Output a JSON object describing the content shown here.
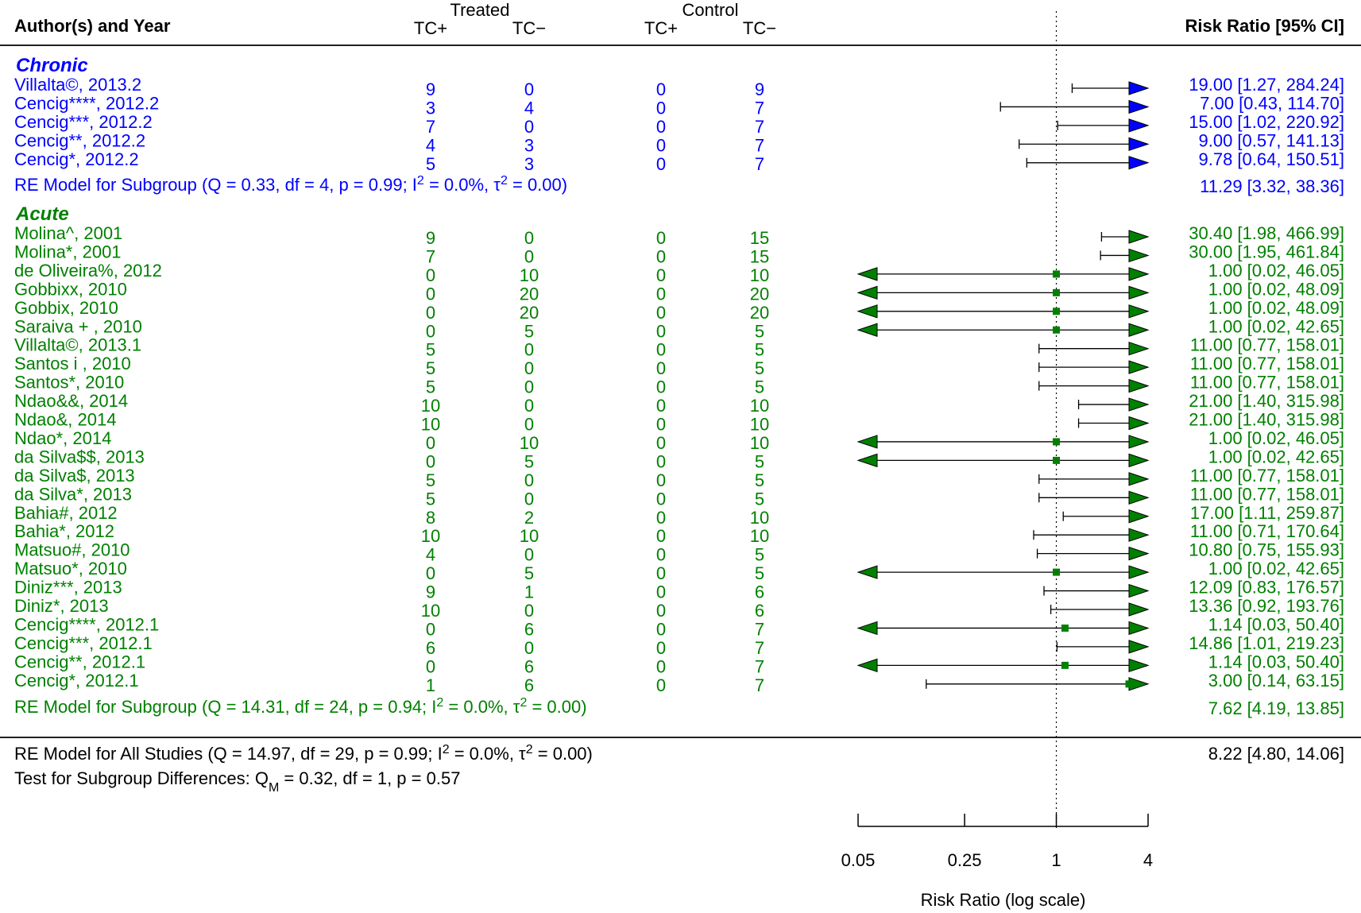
{
  "chart_data": {
    "type": "forest",
    "header": {
      "study_col": "Author(s) and Year",
      "treated_label": "Treated",
      "control_label": "Control",
      "tc_pos": "TC+",
      "tc_neg": "TC−",
      "effect_col": "Risk Ratio [95% CI]"
    },
    "x_axis": {
      "label": "Risk Ratio (log scale)",
      "scale": "log",
      "ticks": [
        0.05,
        0.25,
        1,
        4
      ],
      "tick_labels": [
        "0.05",
        "0.25",
        "1",
        "4"
      ],
      "range": [
        0.05,
        4
      ],
      "reference_line": 1
    },
    "colors": {
      "chronic": "#0000ff",
      "acute": "#008000",
      "overall": "#000000"
    },
    "groups": [
      {
        "name": "Chronic",
        "color": "#0000ff",
        "studies": [
          {
            "label": "Villalta©, 2013.2",
            "t_pos": "9",
            "t_neg": "0",
            "c_pos": "0",
            "c_neg": "9",
            "rr": 19.0,
            "lo": 1.27,
            "hi": 284.24,
            "text": "19.00 [1.27, 284.24]"
          },
          {
            "label": "Cencig****, 2012.2",
            "t_pos": "3",
            "t_neg": "4",
            "c_pos": "0",
            "c_neg": "7",
            "rr": 7.0,
            "lo": 0.43,
            "hi": 114.7,
            "text": "7.00 [0.43, 114.70]"
          },
          {
            "label": "Cencig***, 2012.2",
            "t_pos": "7",
            "t_neg": "0",
            "c_pos": "0",
            "c_neg": "7",
            "rr": 15.0,
            "lo": 1.02,
            "hi": 220.92,
            "text": "15.00 [1.02, 220.92]"
          },
          {
            "label": "Cencig**, 2012.2",
            "t_pos": "4",
            "t_neg": "3",
            "c_pos": "0",
            "c_neg": "7",
            "rr": 9.0,
            "lo": 0.57,
            "hi": 141.13,
            "text": "9.00 [0.57, 141.13]"
          },
          {
            "label": "Cencig*, 2012.2",
            "t_pos": "5",
            "t_neg": "3",
            "c_pos": "0",
            "c_neg": "7",
            "rr": 9.78,
            "lo": 0.64,
            "hi": 150.51,
            "text": "9.78 [0.64, 150.51]"
          }
        ],
        "summary": {
          "label": "RE Model for Subgroup (Q = 0.33, df = 4, p = 0.99; I² = 0.0%, τ² = 0.00)",
          "text": "11.29 [3.32,  38.36]",
          "rr": 11.29,
          "lo": 3.32,
          "hi": 38.36
        }
      },
      {
        "name": "Acute",
        "color": "#008000",
        "studies": [
          {
            "label": "Molina^, 2001",
            "t_pos": "9",
            "t_neg": "0",
            "c_pos": "0",
            "c_neg": "15",
            "rr": 30.4,
            "lo": 1.98,
            "hi": 466.99,
            "text": "30.40 [1.98, 466.99]"
          },
          {
            "label": "Molina*, 2001",
            "t_pos": "7",
            "t_neg": "0",
            "c_pos": "0",
            "c_neg": "15",
            "rr": 30.0,
            "lo": 1.95,
            "hi": 461.84,
            "text": "30.00 [1.95, 461.84]"
          },
          {
            "label": "de Oliveira%, 2012",
            "t_pos": "0",
            "t_neg": "10",
            "c_pos": "0",
            "c_neg": "10",
            "rr": 1.0,
            "lo": 0.02,
            "hi": 46.05,
            "text": "1.00 [0.02,  46.05]"
          },
          {
            "label": "Gobbixx, 2010",
            "t_pos": "0",
            "t_neg": "20",
            "c_pos": "0",
            "c_neg": "20",
            "rr": 1.0,
            "lo": 0.02,
            "hi": 48.09,
            "text": "1.00 [0.02,  48.09]"
          },
          {
            "label": "Gobbix, 2010",
            "t_pos": "0",
            "t_neg": "20",
            "c_pos": "0",
            "c_neg": "20",
            "rr": 1.0,
            "lo": 0.02,
            "hi": 48.09,
            "text": "1.00 [0.02,  48.09]"
          },
          {
            "label": "Saraiva + , 2010",
            "t_pos": "0",
            "t_neg": "5",
            "c_pos": "0",
            "c_neg": "5",
            "rr": 1.0,
            "lo": 0.02,
            "hi": 42.65,
            "text": "1.00 [0.02,  42.65]"
          },
          {
            "label": "Villalta©, 2013.1",
            "t_pos": "5",
            "t_neg": "0",
            "c_pos": "0",
            "c_neg": "5",
            "rr": 11.0,
            "lo": 0.77,
            "hi": 158.01,
            "text": "11.00 [0.77, 158.01]"
          },
          {
            "label": "Santos i , 2010",
            "t_pos": "5",
            "t_neg": "0",
            "c_pos": "0",
            "c_neg": "5",
            "rr": 11.0,
            "lo": 0.77,
            "hi": 158.01,
            "text": "11.00 [0.77, 158.01]"
          },
          {
            "label": "Santos*, 2010",
            "t_pos": "5",
            "t_neg": "0",
            "c_pos": "0",
            "c_neg": "5",
            "rr": 11.0,
            "lo": 0.77,
            "hi": 158.01,
            "text": "11.00 [0.77, 158.01]"
          },
          {
            "label": "Ndao&&, 2014",
            "t_pos": "10",
            "t_neg": "0",
            "c_pos": "0",
            "c_neg": "10",
            "rr": 21.0,
            "lo": 1.4,
            "hi": 315.98,
            "text": "21.00 [1.40, 315.98]"
          },
          {
            "label": "Ndao&, 2014",
            "t_pos": "10",
            "t_neg": "0",
            "c_pos": "0",
            "c_neg": "10",
            "rr": 21.0,
            "lo": 1.4,
            "hi": 315.98,
            "text": "21.00 [1.40, 315.98]"
          },
          {
            "label": "Ndao*, 2014",
            "t_pos": "0",
            "t_neg": "10",
            "c_pos": "0",
            "c_neg": "10",
            "rr": 1.0,
            "lo": 0.02,
            "hi": 46.05,
            "text": "1.00 [0.02,  46.05]"
          },
          {
            "label": "da Silva$$, 2013",
            "t_pos": "0",
            "t_neg": "5",
            "c_pos": "0",
            "c_neg": "5",
            "rr": 1.0,
            "lo": 0.02,
            "hi": 42.65,
            "text": "1.00 [0.02,  42.65]"
          },
          {
            "label": "da Silva$, 2013",
            "t_pos": "5",
            "t_neg": "0",
            "c_pos": "0",
            "c_neg": "5",
            "rr": 11.0,
            "lo": 0.77,
            "hi": 158.01,
            "text": "11.00 [0.77, 158.01]"
          },
          {
            "label": "da Silva*, 2013",
            "t_pos": "5",
            "t_neg": "0",
            "c_pos": "0",
            "c_neg": "5",
            "rr": 11.0,
            "lo": 0.77,
            "hi": 158.01,
            "text": "11.00 [0.77, 158.01]"
          },
          {
            "label": "Bahia#, 2012",
            "t_pos": "8",
            "t_neg": "2",
            "c_pos": "0",
            "c_neg": "10",
            "rr": 17.0,
            "lo": 1.11,
            "hi": 259.87,
            "text": "17.00 [1.11, 259.87]"
          },
          {
            "label": "Bahia*, 2012",
            "t_pos": "10",
            "t_neg": "10",
            "c_pos": "0",
            "c_neg": "10",
            "rr": 11.0,
            "lo": 0.71,
            "hi": 170.64,
            "text": "11.00 [0.71, 170.64]"
          },
          {
            "label": "Matsuo#, 2010",
            "t_pos": "4",
            "t_neg": "0",
            "c_pos": "0",
            "c_neg": "5",
            "rr": 10.8,
            "lo": 0.75,
            "hi": 155.93,
            "text": "10.80 [0.75, 155.93]"
          },
          {
            "label": "Matsuo*, 2010",
            "t_pos": "0",
            "t_neg": "5",
            "c_pos": "0",
            "c_neg": "5",
            "rr": 1.0,
            "lo": 0.02,
            "hi": 42.65,
            "text": "1.00 [0.02,  42.65]"
          },
          {
            "label": "Diniz***, 2013",
            "t_pos": "9",
            "t_neg": "1",
            "c_pos": "0",
            "c_neg": "6",
            "rr": 12.09,
            "lo": 0.83,
            "hi": 176.57,
            "text": "12.09 [0.83, 176.57]"
          },
          {
            "label": "Diniz*, 2013",
            "t_pos": "10",
            "t_neg": "0",
            "c_pos": "0",
            "c_neg": "6",
            "rr": 13.36,
            "lo": 0.92,
            "hi": 193.76,
            "text": "13.36 [0.92, 193.76]"
          },
          {
            "label": "Cencig****, 2012.1",
            "t_pos": "0",
            "t_neg": "6",
            "c_pos": "0",
            "c_neg": "7",
            "rr": 1.14,
            "lo": 0.03,
            "hi": 50.4,
            "text": "1.14 [0.03,  50.40]"
          },
          {
            "label": "Cencig***, 2012.1",
            "t_pos": "6",
            "t_neg": "0",
            "c_pos": "0",
            "c_neg": "7",
            "rr": 14.86,
            "lo": 1.01,
            "hi": 219.23,
            "text": "14.86 [1.01, 219.23]"
          },
          {
            "label": "Cencig**, 2012.1",
            "t_pos": "0",
            "t_neg": "6",
            "c_pos": "0",
            "c_neg": "7",
            "rr": 1.14,
            "lo": 0.03,
            "hi": 50.4,
            "text": "1.14 [0.03,  50.40]"
          },
          {
            "label": "Cencig*, 2012.1",
            "t_pos": "1",
            "t_neg": "6",
            "c_pos": "0",
            "c_neg": "7",
            "rr": 3.0,
            "lo": 0.14,
            "hi": 63.15,
            "text": "3.00 [0.14,  63.15]"
          }
        ],
        "summary": {
          "label": "RE Model for Subgroup (Q = 14.31, df = 24, p = 0.94; I² = 0.0%, τ² = 0.00)",
          "text": "7.62 [4.19,  13.85]",
          "rr": 7.62,
          "lo": 4.19,
          "hi": 13.85
        }
      }
    ],
    "overall": {
      "label": "RE Model for All Studies (Q = 14.97, df = 29, p = 0.99; I² = 0.0%, τ² = 0.00)",
      "text": "8.22 [4.80,  14.06]",
      "rr": 8.22,
      "lo": 4.8,
      "hi": 14.06
    },
    "subgroup_test": "Test for Subgroup Differences: QM = 0.32, df = 1, p = 0.57"
  }
}
